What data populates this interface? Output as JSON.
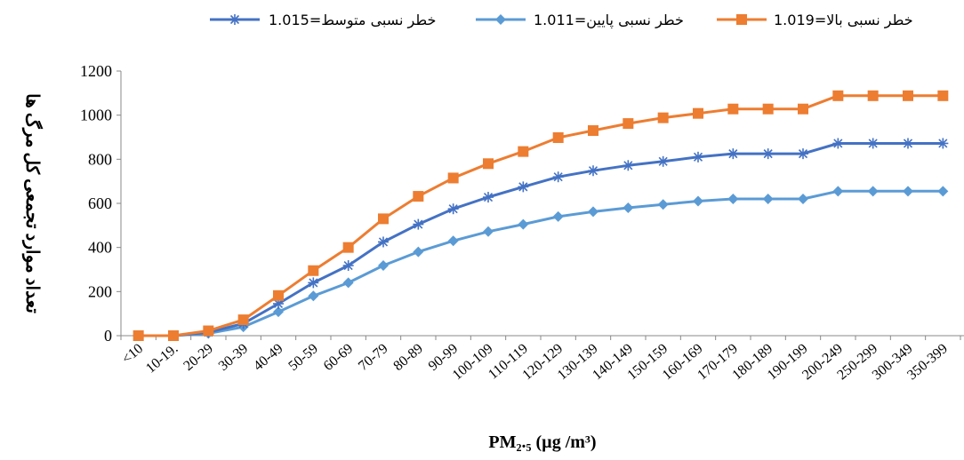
{
  "chart_data": {
    "type": "line",
    "xlabel": "PM₂.₅ (µg /m³)",
    "ylabel": "تعداد موارد تجمعی کل مرگ ها",
    "ylim": [
      0,
      1200
    ],
    "yticks": [
      "0",
      "200",
      "400",
      "600",
      "800",
      "1000",
      "1200"
    ],
    "categories": [
      "<10",
      "10-19.",
      "20-29",
      "30-39",
      "40-49",
      "50-59",
      "60-69",
      "70-79",
      "80-89",
      "90-99",
      "100-109",
      "110-119",
      "120-129",
      "130-139",
      "140-149",
      "150-159",
      "160-169",
      "170-179",
      "180-189",
      "190-199",
      "200-249",
      "250-299",
      "300-349",
      "350-399"
    ],
    "series": [
      {
        "name": "خطر نسبی متوسط=1.015",
        "marker": "asterisk",
        "color": "#4472C4",
        "values": [
          0,
          0,
          15,
          55,
          145,
          240,
          318,
          425,
          505,
          575,
          628,
          675,
          720,
          748,
          772,
          790,
          810,
          825,
          825,
          825,
          872,
          872,
          872,
          872
        ]
      },
      {
        "name": "خطر نسبی پایین=1.011",
        "marker": "diamond",
        "color": "#5B9BD5",
        "values": [
          0,
          0,
          10,
          40,
          108,
          180,
          240,
          318,
          380,
          430,
          472,
          505,
          540,
          562,
          580,
          595,
          610,
          620,
          620,
          620,
          655,
          655,
          655,
          655
        ]
      },
      {
        "name": "خطر نسبی بالا=1.019",
        "marker": "square",
        "color": "#ED7D31",
        "values": [
          0,
          0,
          22,
          72,
          182,
          295,
          400,
          530,
          632,
          715,
          780,
          835,
          898,
          930,
          962,
          988,
          1008,
          1028,
          1028,
          1028,
          1088,
          1088,
          1088,
          1088
        ]
      }
    ]
  }
}
